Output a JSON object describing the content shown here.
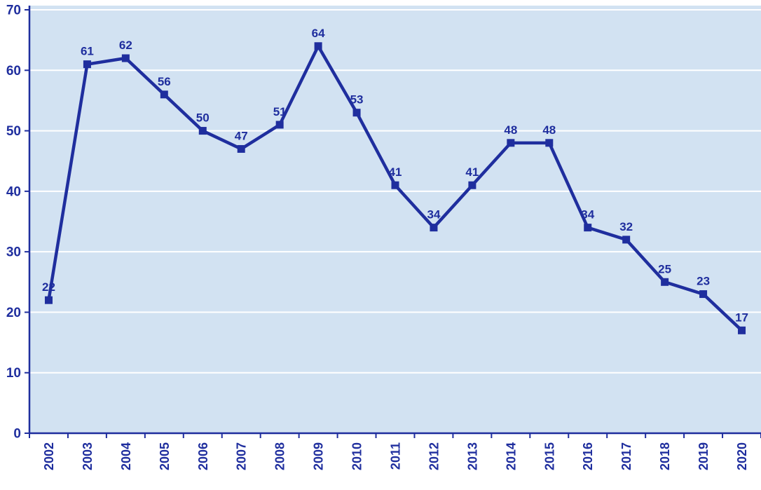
{
  "chart_data": {
    "type": "line",
    "title": "",
    "categories": [
      "2002",
      "2003",
      "2004",
      "2005",
      "2006",
      "2007",
      "2008",
      "2009",
      "2010",
      "2011",
      "2012",
      "2013",
      "2014",
      "2015",
      "2016",
      "2017",
      "2018",
      "2019",
      "2020"
    ],
    "values": [
      22,
      61,
      62,
      56,
      50,
      47,
      51,
      64,
      53,
      41,
      34,
      41,
      48,
      48,
      34,
      32,
      25,
      23,
      17
    ],
    "data_labels": [
      "22",
      "61",
      "62",
      "56",
      "50",
      "47",
      "51",
      "64",
      "53",
      "41",
      "34",
      "41",
      "48",
      "48",
      "34",
      "32",
      "25",
      "23",
      "17"
    ],
    "xlabel": "",
    "ylabel": "",
    "ylim": [
      0,
      70
    ],
    "yticks": [
      0,
      10,
      20,
      30,
      40,
      50,
      60,
      70
    ],
    "grid": "horizontal",
    "legend_position": "none",
    "marker": "square",
    "colors": {
      "line": "#1f2e9e",
      "marker": "#1f2e9e",
      "data_label": "#1f2e9e",
      "axis": "#1f2e9e",
      "tick_label": "#1f2e9e",
      "plot_background": "#d2e2f2",
      "gridline": "#ffffff",
      "page_background": "#ffffff"
    }
  }
}
